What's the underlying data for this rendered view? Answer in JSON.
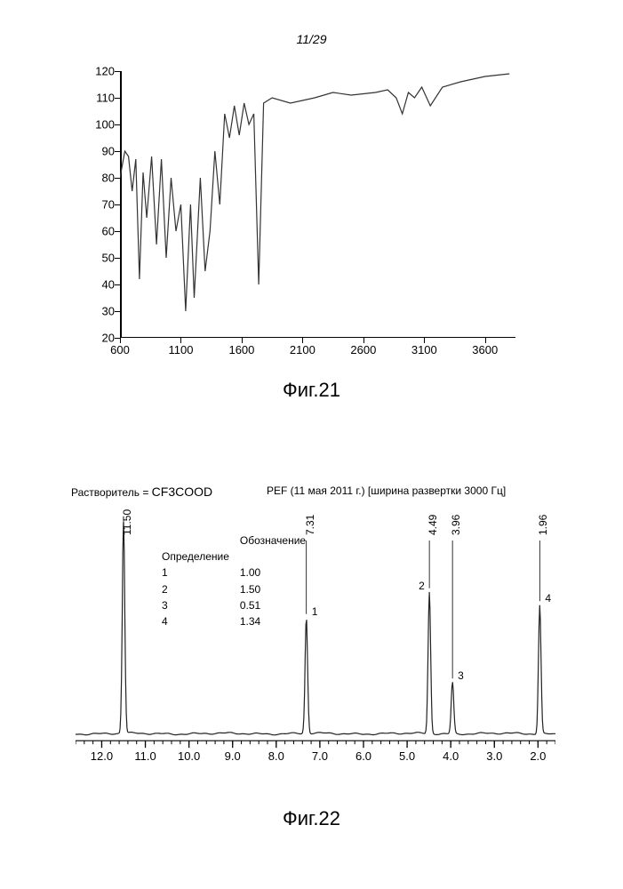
{
  "page_label": "11/29",
  "fig21": {
    "caption": "Фиг.21",
    "type": "line",
    "xlim": [
      600,
      3850
    ],
    "ylim": [
      20,
      120
    ],
    "xticks": [
      600,
      1100,
      1600,
      2100,
      2600,
      3100,
      3600
    ],
    "yticks": [
      20,
      30,
      40,
      50,
      60,
      70,
      80,
      90,
      100,
      110,
      120
    ],
    "axis_color": "#000000",
    "trace_color": "#333333",
    "background_color": "#ffffff",
    "trace_width": 1.2,
    "tick_fontsize": 13,
    "data": [
      [
        600,
        80
      ],
      [
        640,
        90
      ],
      [
        670,
        88
      ],
      [
        700,
        75
      ],
      [
        730,
        87
      ],
      [
        760,
        42
      ],
      [
        790,
        82
      ],
      [
        820,
        65
      ],
      [
        860,
        88
      ],
      [
        900,
        55
      ],
      [
        940,
        87
      ],
      [
        980,
        50
      ],
      [
        1020,
        80
      ],
      [
        1060,
        60
      ],
      [
        1100,
        70
      ],
      [
        1140,
        30
      ],
      [
        1180,
        70
      ],
      [
        1210,
        35
      ],
      [
        1260,
        80
      ],
      [
        1300,
        45
      ],
      [
        1340,
        60
      ],
      [
        1380,
        90
      ],
      [
        1420,
        70
      ],
      [
        1460,
        104
      ],
      [
        1500,
        95
      ],
      [
        1540,
        107
      ],
      [
        1580,
        96
      ],
      [
        1620,
        108
      ],
      [
        1660,
        100
      ],
      [
        1700,
        104
      ],
      [
        1740,
        40
      ],
      [
        1780,
        108
      ],
      [
        1850,
        110
      ],
      [
        2000,
        108
      ],
      [
        2200,
        110
      ],
      [
        2350,
        112
      ],
      [
        2500,
        111
      ],
      [
        2700,
        112
      ],
      [
        2800,
        113
      ],
      [
        2870,
        110
      ],
      [
        2920,
        104
      ],
      [
        2970,
        112
      ],
      [
        3020,
        110
      ],
      [
        3080,
        114
      ],
      [
        3150,
        107
      ],
      [
        3250,
        114
      ],
      [
        3400,
        116
      ],
      [
        3600,
        118
      ],
      [
        3800,
        119
      ]
    ]
  },
  "fig22": {
    "caption": "Фиг.22",
    "type": "nmr",
    "solvent_label": "Растворитель",
    "solvent_value": "CF3COOD",
    "title": "PEF (11 мая 2011 г.) [ширина развертки 3000 Гц]",
    "legend_header_left": "Обозначение",
    "legend_header_right": "Определение",
    "legend_rows": [
      {
        "idx": "1",
        "val": "1.00"
      },
      {
        "idx": "2",
        "val": "1.50"
      },
      {
        "idx": "3",
        "val": "0.51"
      },
      {
        "idx": "4",
        "val": "1.34"
      }
    ],
    "xlim": [
      12.6,
      1.6
    ],
    "xticks": [
      12.0,
      11.0,
      10.0,
      9.0,
      8.0,
      7.0,
      6.0,
      5.0,
      4.0,
      3.0,
      2.0
    ],
    "minor_step": 0.2,
    "baseline_y": 0.88,
    "axis_color": "#000000",
    "trace_color": "#222222",
    "trace_width": 1.2,
    "tick_fontsize": 13,
    "peaks": [
      {
        "ppm": 11.5,
        "height": 0.82,
        "label": "11.50"
      },
      {
        "ppm": 7.31,
        "height": 0.45,
        "label": "7.31",
        "num": "1"
      },
      {
        "ppm": 4.49,
        "height": 0.55,
        "label": "4.49",
        "num": "2"
      },
      {
        "ppm": 3.96,
        "height": 0.2,
        "label": "3.96",
        "num": "3"
      },
      {
        "ppm": 1.96,
        "height": 0.5,
        "label": "1.96",
        "num": "4"
      }
    ]
  }
}
